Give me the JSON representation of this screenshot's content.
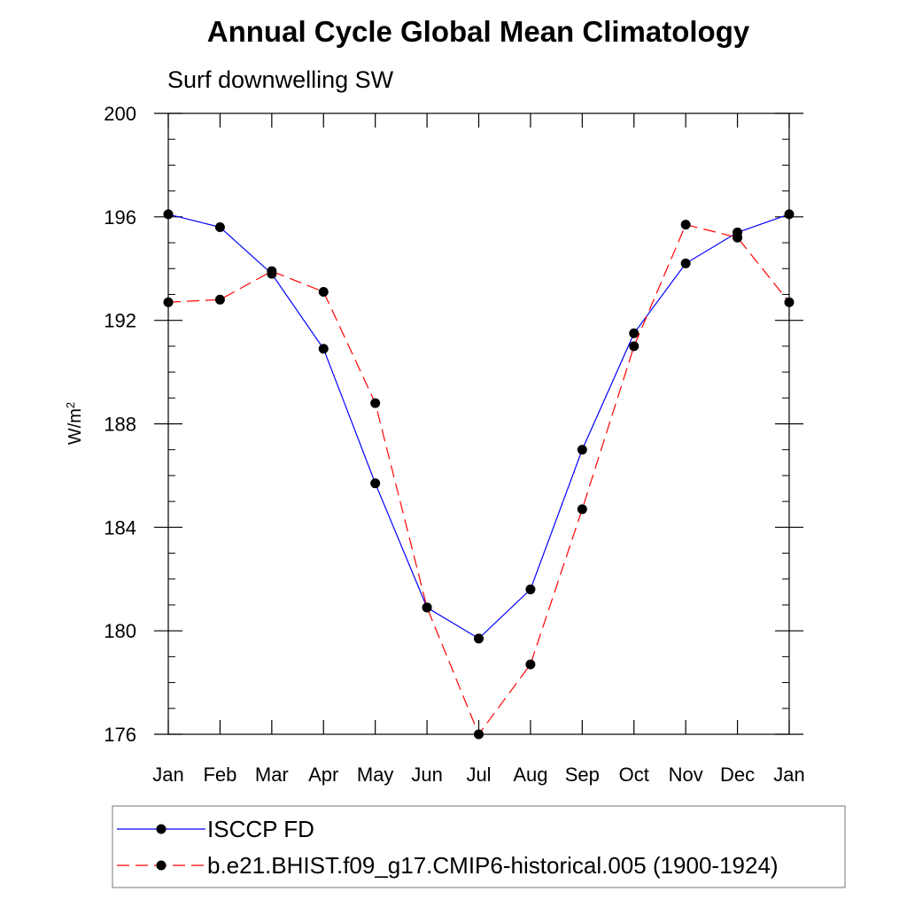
{
  "chart_data": {
    "type": "line",
    "title": "Annual Cycle Global Mean Climatology",
    "subtitle": "Surf downwelling SW",
    "ylabel_base": "W/m",
    "ylabel_sup": "2",
    "xlabel": "",
    "ylim": [
      176,
      200
    ],
    "yticks": [
      176,
      180,
      184,
      188,
      192,
      196,
      200
    ],
    "yticks_minor_step": 1,
    "categories": [
      "Jan",
      "Feb",
      "Mar",
      "Apr",
      "May",
      "Jun",
      "Jul",
      "Aug",
      "Sep",
      "Oct",
      "Nov",
      "Dec",
      "Jan"
    ],
    "series": [
      {
        "name": "ISCCP FD",
        "color": "#0000ff",
        "dash": "solid",
        "values": [
          196.1,
          195.6,
          193.8,
          190.9,
          185.7,
          180.9,
          179.7,
          181.6,
          187.0,
          191.5,
          194.2,
          195.4,
          196.1
        ]
      },
      {
        "name": "b.e21.BHIST.f09_g17.CMIP6-historical.005 (1900-1924)",
        "color": "#ff0000",
        "dash": "dashed",
        "values": [
          192.7,
          192.8,
          193.9,
          193.1,
          188.8,
          180.9,
          176.0,
          178.7,
          184.7,
          191.0,
          195.7,
          195.2,
          192.7
        ]
      }
    ],
    "legend_position": "bottom"
  }
}
